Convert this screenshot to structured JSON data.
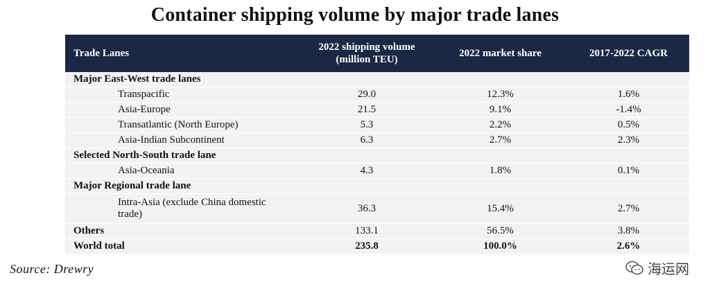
{
  "title": "Container shipping volume by major trade lanes",
  "table": {
    "headers": [
      "Trade Lanes",
      "2022 shipping volume (million TEU)",
      "2022 market share",
      "2017-2022 CAGR"
    ],
    "sections": [
      {
        "label": "Major East-West trade lanes",
        "rows": [
          {
            "lane": "Transpacific",
            "volume": "29.0",
            "share": "12.3%",
            "cagr": "1.6%"
          },
          {
            "lane": "Asia-Europe",
            "volume": "21.5",
            "share": "9.1%",
            "cagr": "-1.4%"
          },
          {
            "lane": "Transatlantic (North Europe)",
            "volume": "5.3",
            "share": "2.2%",
            "cagr": "0.5%"
          },
          {
            "lane": "Asia-Indian Subcontinent",
            "volume": "6.3",
            "share": "2.7%",
            "cagr": "2.3%"
          }
        ]
      },
      {
        "label": "Selected North-South trade lane",
        "rows": [
          {
            "lane": "Asia-Oceania",
            "volume": "4.3",
            "share": "1.8%",
            "cagr": "0.1%"
          }
        ]
      },
      {
        "label": "Major Regional trade lane",
        "rows": [
          {
            "lane": "Intra-Asia (exclude China domestic trade)",
            "volume": "36.3",
            "share": "15.4%",
            "cagr": "2.7%"
          }
        ]
      }
    ],
    "others": {
      "lane": "Others",
      "volume": "133.1",
      "share": "56.5%",
      "cagr": "3.8%"
    },
    "total": {
      "lane": "World total",
      "volume": "235.8",
      "share": "100.0%",
      "cagr": "2.6%"
    }
  },
  "source": "Source: Drewry",
  "watermark": "海运网",
  "colors": {
    "header_bg": "#1b2845",
    "row_bg": "#f2f2f2"
  }
}
